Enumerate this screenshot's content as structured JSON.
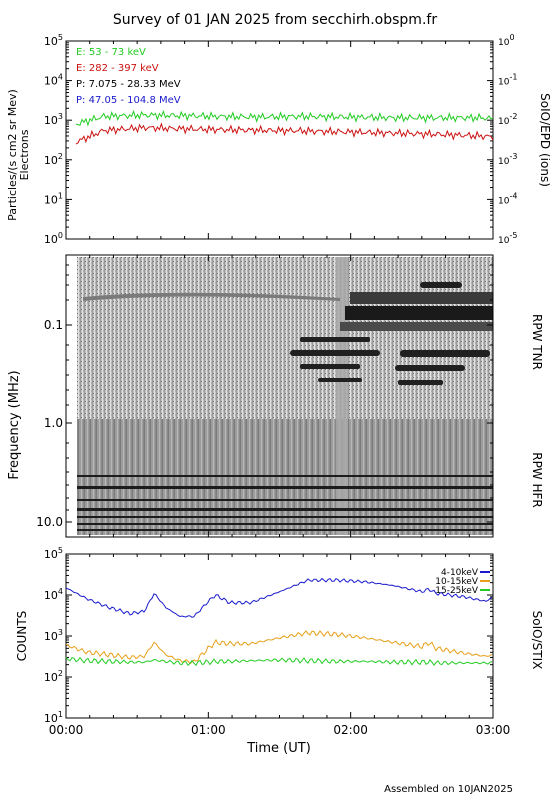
{
  "title": "Survey of 01 JAN 2025 from secchirh.obspm.fr",
  "footer": "Assembled on  10JAN2025",
  "x_axis": {
    "label": "Time (UT)",
    "range": [
      "00:00",
      "03:00"
    ],
    "ticks": [
      "00:00",
      "01:00",
      "02:00",
      "03:00"
    ]
  },
  "colors": {
    "green": "#22cc22",
    "red": "#cc1111",
    "black": "#000000",
    "blue": "#1a1acc",
    "orange": "#e6a019"
  },
  "chart_data": [
    {
      "type": "line",
      "panel": "epd",
      "title": "",
      "ylabel_lines": [
        "Particles/(s cm2 sr Mev)",
        "Electrons"
      ],
      "right_label": "SoIO/EPD (ions)",
      "yscale": "log",
      "ylim": [
        1,
        100000
      ],
      "y_ticks": [
        "10^0",
        "10^1",
        "10^2",
        "10^3",
        "10^4",
        "10^5"
      ],
      "right_ylim": [
        1e-05,
        1
      ],
      "right_ticks": [
        "10^-5",
        "10^-4",
        "10^-3",
        "10^-2",
        "10^-1",
        "10^0"
      ],
      "legend_placement": "top-left",
      "legend": [
        {
          "text": "E: 53 - 73 keV",
          "color": "#22cc22"
        },
        {
          "text": "E: 282 - 397 keV",
          "color": "#cc1111"
        },
        {
          "text": "P: 7.075 - 28.33 MeV",
          "color": "#000000"
        },
        {
          "text": "P: 47.05 - 104.8 MeV",
          "color": "#1a1acc"
        }
      ],
      "x_hours": [
        0.0,
        0.2,
        0.5,
        0.8,
        1.0,
        1.3,
        1.6,
        2.0,
        2.3,
        2.6,
        2.9,
        3.0
      ],
      "series": [
        {
          "name": "E: 53 - 73 keV",
          "color": "#22cc22",
          "values": [
            800,
            1250,
            1350,
            1300,
            1250,
            1200,
            1250,
            1200,
            1150,
            1150,
            1150,
            1100
          ]
        },
        {
          "name": "E: 282 - 397 keV",
          "color": "#cc1111",
          "values": [
            280,
            550,
            650,
            600,
            580,
            560,
            540,
            500,
            470,
            440,
            400,
            380
          ]
        }
      ]
    },
    {
      "type": "heatmap",
      "panel": "rpw",
      "ylabel": "Frequency (MHz)",
      "y_ticks": [
        "0.1",
        "1.0",
        "10.0"
      ],
      "right_label_top": "RPW TNR",
      "right_label_bottom": "RPW HFR"
    },
    {
      "type": "line",
      "panel": "stix",
      "ylabel": "COUNTS",
      "right_label": "SoIO/STIX",
      "yscale": "log",
      "ylim": [
        10,
        100000
      ],
      "y_ticks": [
        "10^1",
        "10^2",
        "10^3",
        "10^4",
        "10^5"
      ],
      "legend_placement": "top-right",
      "x_hours": [
        0.0,
        0.15,
        0.3,
        0.45,
        0.55,
        0.62,
        0.7,
        0.8,
        0.9,
        1.0,
        1.05,
        1.15,
        1.3,
        1.5,
        1.7,
        1.9,
        2.1,
        2.3,
        2.5,
        2.55,
        2.6,
        2.8,
        2.95,
        3.0
      ],
      "series": [
        {
          "name": "4-10keV",
          "color": "#1a1acc",
          "values": [
            15000,
            8000,
            5000,
            3500,
            4000,
            11000,
            5000,
            3000,
            3000,
            7000,
            10000,
            6500,
            6500,
            12000,
            23000,
            23000,
            21000,
            17000,
            12000,
            14000,
            11000,
            9000,
            7000,
            9000
          ]
        },
        {
          "name": "10-15keV",
          "color": "#e6a019",
          "values": [
            600,
            400,
            350,
            300,
            320,
            700,
            350,
            250,
            230,
            500,
            700,
            650,
            650,
            900,
            1200,
            1100,
            900,
            700,
            550,
            700,
            500,
            380,
            320,
            350
          ]
        },
        {
          "name": "15-25keV",
          "color": "#22cc22",
          "values": [
            280,
            250,
            240,
            230,
            230,
            260,
            240,
            220,
            220,
            230,
            240,
            240,
            250,
            260,
            250,
            240,
            240,
            230,
            230,
            230,
            220,
            220,
            220,
            220
          ]
        }
      ]
    }
  ]
}
